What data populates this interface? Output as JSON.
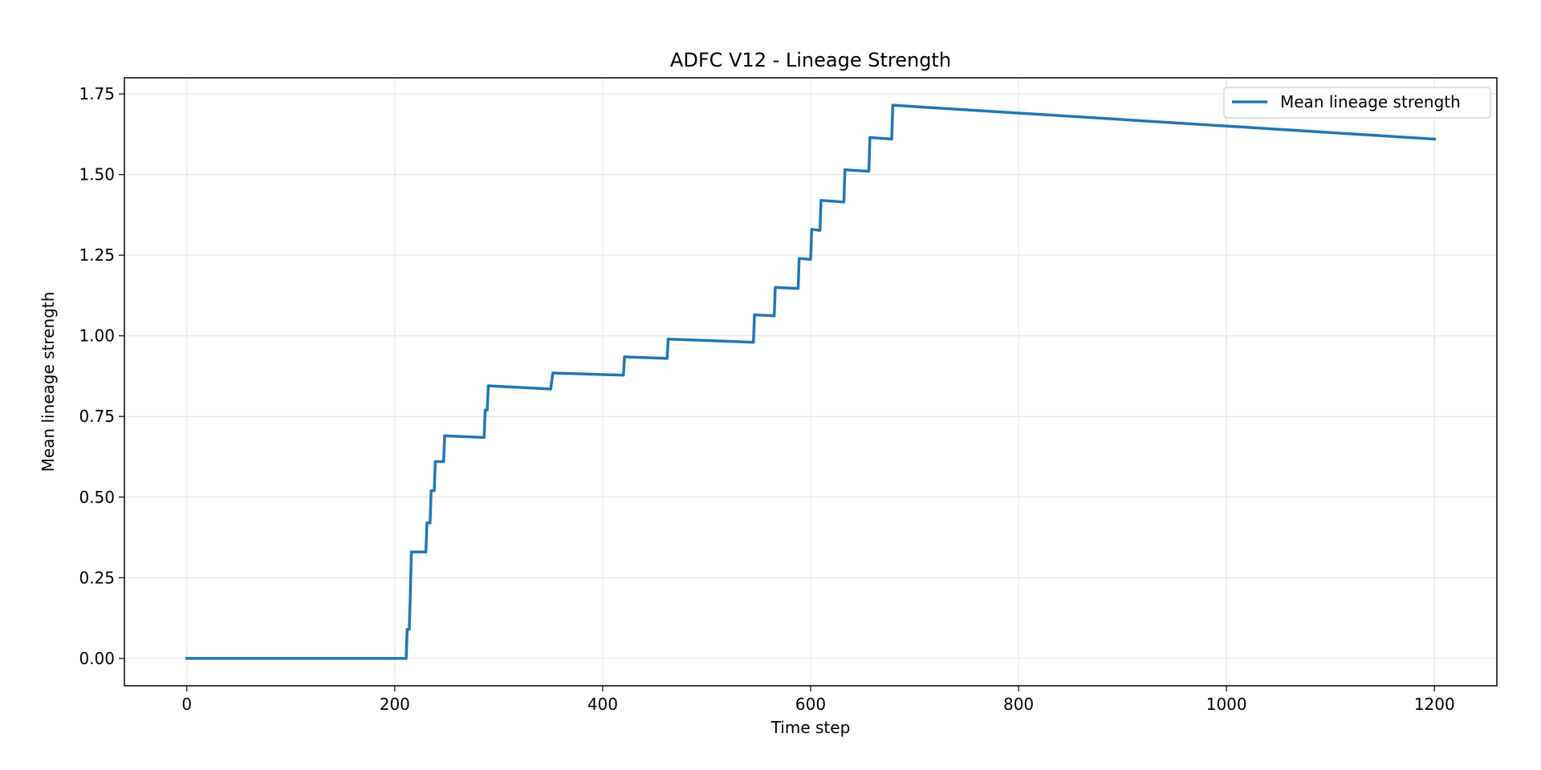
{
  "chart_data": {
    "type": "line",
    "title": "ADFC V12 - Lineage Strength",
    "xlabel": "Time step",
    "ylabel": "Mean lineage strength",
    "xlim": [
      -60,
      1260
    ],
    "ylim": [
      -0.085,
      1.8
    ],
    "xticks": [
      0,
      200,
      400,
      600,
      800,
      1000,
      1200
    ],
    "xtick_labels": [
      "0",
      "200",
      "400",
      "600",
      "800",
      "1000",
      "1200"
    ],
    "yticks": [
      0.0,
      0.25,
      0.5,
      0.75,
      1.0,
      1.25,
      1.5,
      1.75
    ],
    "ytick_labels": [
      "0.00",
      "0.25",
      "0.50",
      "0.75",
      "1.00",
      "1.25",
      "1.50",
      "1.75"
    ],
    "grid": true,
    "legend_position": "top-right",
    "series": [
      {
        "name": "Mean lineage strength",
        "color": "#1f77b4",
        "points": [
          [
            0,
            0.0
          ],
          [
            211,
            0.0
          ],
          [
            212,
            0.09
          ],
          [
            214,
            0.09
          ],
          [
            215,
            0.2
          ],
          [
            216,
            0.33
          ],
          [
            230,
            0.33
          ],
          [
            231,
            0.42
          ],
          [
            234,
            0.42
          ],
          [
            235,
            0.52
          ],
          [
            238,
            0.52
          ],
          [
            239,
            0.61
          ],
          [
            247,
            0.61
          ],
          [
            248,
            0.69
          ],
          [
            286,
            0.685
          ],
          [
            287,
            0.77
          ],
          [
            289,
            0.77
          ],
          [
            290,
            0.845
          ],
          [
            350,
            0.835
          ],
          [
            352,
            0.885
          ],
          [
            420,
            0.878
          ],
          [
            421,
            0.935
          ],
          [
            462,
            0.93
          ],
          [
            463,
            0.99
          ],
          [
            545,
            0.98
          ],
          [
            546,
            1.065
          ],
          [
            565,
            1.062
          ],
          [
            566,
            1.15
          ],
          [
            588,
            1.147
          ],
          [
            589,
            1.24
          ],
          [
            600,
            1.237
          ],
          [
            601,
            1.33
          ],
          [
            609,
            1.327
          ],
          [
            610,
            1.42
          ],
          [
            632,
            1.415
          ],
          [
            633,
            1.515
          ],
          [
            656,
            1.51
          ],
          [
            657,
            1.615
          ],
          [
            678,
            1.61
          ],
          [
            679,
            1.715
          ],
          [
            1200,
            1.61
          ]
        ]
      }
    ]
  }
}
